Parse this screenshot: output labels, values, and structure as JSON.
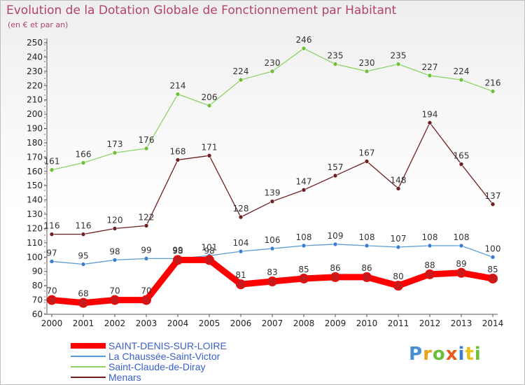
{
  "header": {
    "title": "Evolution de la Dotation Globale de Fonctionnement par Habitant",
    "subtitle": "(en € et par an)"
  },
  "logo": {
    "text": "Proxiti",
    "colors": [
      "#4a8fd6",
      "#e8a21a",
      "#6abf3c",
      "#e85a1a",
      "#3a7fd0",
      "#e8c21a",
      "#6abf3c"
    ]
  },
  "chart_data": {
    "type": "line",
    "title": "Evolution de la Dotation Globale de Fonctionnement par Habitant",
    "subtitle": "(en € et par an)",
    "x": [
      2000,
      2001,
      2002,
      2003,
      2004,
      2005,
      2006,
      2007,
      2008,
      2009,
      2010,
      2011,
      2012,
      2013,
      2014
    ],
    "ylim": [
      60,
      250
    ],
    "ytick_step": 10,
    "grid": false,
    "legend_position": "bottom-left",
    "series": [
      {
        "name": "SAINT-DENIS-SUR-LOIRE",
        "color": "#ff0000",
        "values": [
          70,
          68,
          70,
          70,
          98,
          98,
          81,
          83,
          85,
          86,
          86,
          80,
          88,
          89,
          85
        ]
      },
      {
        "name": "La Chaussée-Saint-Victor",
        "color": "#5b9bd5",
        "values": [
          97,
          95,
          98,
          99,
          99,
          101,
          104,
          106,
          108,
          109,
          108,
          107,
          108,
          108,
          100
        ]
      },
      {
        "name": "Saint-Claude-de-Diray",
        "color": "#8ed36a",
        "values": [
          161,
          166,
          173,
          176,
          214,
          206,
          224,
          230,
          246,
          235,
          230,
          235,
          227,
          224,
          216
        ]
      },
      {
        "name": "Menars",
        "color": "#6e1f1f",
        "values": [
          116,
          116,
          120,
          122,
          168,
          171,
          128,
          139,
          147,
          157,
          167,
          148,
          194,
          165,
          137
        ]
      }
    ]
  }
}
